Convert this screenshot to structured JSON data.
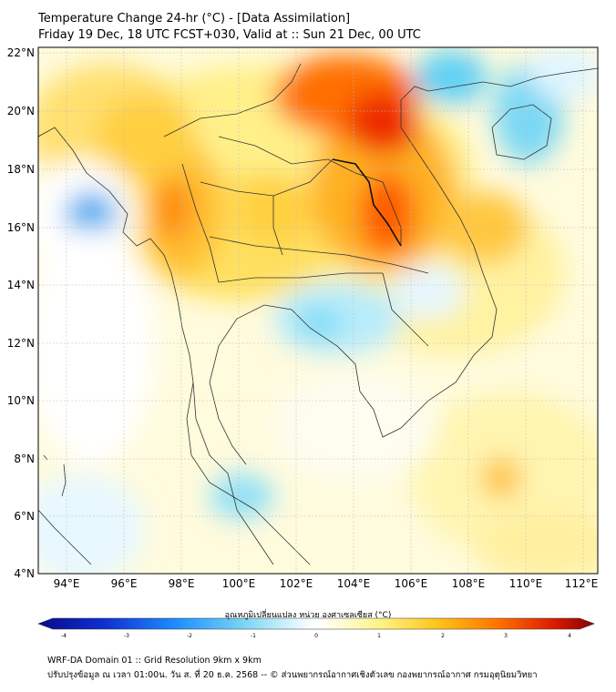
{
  "header": {
    "line1": "Temperature Change 24-hr (°C) - [Data Assimilation]",
    "line2": "Friday 19 Dec, 18 UTC FCST+030, Valid at :: Sun 21 Dec, 00 UTC"
  },
  "map": {
    "lon_range": [
      93,
      112.5
    ],
    "lat_range": [
      4,
      22
    ],
    "lon_ticks": [
      "94°E",
      "96°E",
      "98°E",
      "100°E",
      "102°E",
      "104°E",
      "106°E",
      "108°E",
      "110°E",
      "112°E"
    ],
    "lat_ticks": [
      "22°N",
      "20°N",
      "18°N",
      "16°N",
      "14°N",
      "12°N",
      "10°N",
      "8°N",
      "6°N",
      "4°N"
    ],
    "colors": {
      "cold_deep": "#0a0a8c",
      "cold": "#1e90ff",
      "cool": "#7fd8f5",
      "neutral": "#ffffff",
      "warm_light": "#fff3a0",
      "warm": "#ffc21a",
      "hot": "#ff6a00",
      "hottest": "#c80000"
    }
  },
  "colorbar": {
    "title": "อุณหภูมิเปลี่ยนแปลง หน่วย องศาเซลเซียส (°C)",
    "range": [
      -4,
      4
    ],
    "ticks": [
      "-4",
      "-3",
      "-2",
      "-1",
      "0",
      "1",
      "2",
      "3",
      "4"
    ]
  },
  "footer": {
    "line1": "WRF-DA Domain 01 :: Grid Resolution 9km x 9km",
    "line2": "ปรับปรุงข้อมูล ณ เวลา 01:00น. วัน ส. ที่ 20 ธ.ค. 2568 -- © ส่วนพยากรณ์อากาศเชิงตัวเลข กองพยากรณ์อากาศ กรมอุตุนิยมวิทยา"
  }
}
